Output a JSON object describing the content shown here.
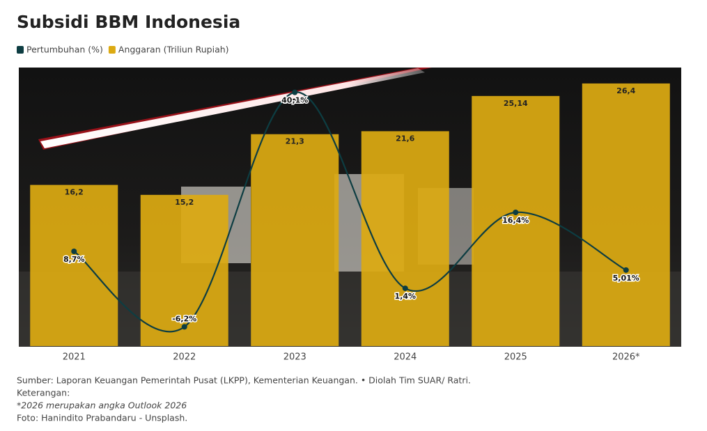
{
  "chart_data": {
    "type": "bar-line",
    "title": "Subsidi BBM Indonesia",
    "categories": [
      "2021",
      "2022",
      "2023",
      "2024",
      "2025",
      "2026*"
    ],
    "series": [
      {
        "name": "Pertumbuhan (%)",
        "type": "line",
        "axis": "y2",
        "color": "#0d3d42",
        "values": [
          8.7,
          -6.2,
          40.1,
          1.4,
          16.4,
          5.01
        ],
        "value_labels": [
          "8,7%",
          "-6,2%",
          "40,1%",
          "1,4%",
          "16,4%",
          "5,01%"
        ]
      },
      {
        "name": "Anggaran (Triliun Rupiah)",
        "type": "bar",
        "color": "#dcaa12",
        "values": [
          16.2,
          15.2,
          21.3,
          21.6,
          25.14,
          26.4
        ],
        "value_labels": [
          "16,2",
          "15,2",
          "21,3",
          "21,6",
          "25,14",
          "26,4"
        ]
      }
    ],
    "ylim": [
      0,
      28
    ],
    "y2lim": [
      -10,
      45
    ],
    "source": "Sumber: Laporan Keuangan Pemerintah Pusat (LKPP), Kementerian Keuangan. • Diolah Tim SUAR/ Ratri.",
    "note_heading": "Keterangan:",
    "note": "*2026 merupakan angka Outlook 2026",
    "photo_credit": "Foto: Hanindito Prabandaru - Unsplash."
  }
}
